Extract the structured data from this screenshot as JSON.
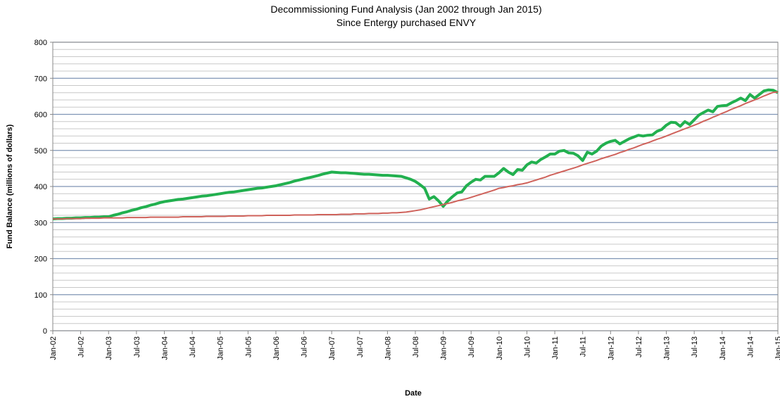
{
  "chart_data": {
    "type": "line",
    "title": "Decommissioning Fund Analysis (Jan 2002 through Jan 2015)",
    "subtitle": "Since Entergy purchased ENVY",
    "xlabel": "Date",
    "ylabel": "Fund Balance (millions of dollars)",
    "categories": [
      "Jan-02",
      null,
      null,
      null,
      null,
      null,
      "Jul-02",
      null,
      null,
      null,
      null,
      null,
      "Jan-03",
      null,
      null,
      null,
      null,
      null,
      "Jul-03",
      null,
      null,
      null,
      null,
      null,
      "Jan-04",
      null,
      null,
      null,
      null,
      null,
      "Jul-04",
      null,
      null,
      null,
      null,
      null,
      "Jan-05",
      null,
      null,
      null,
      null,
      null,
      "Jul-05",
      null,
      null,
      null,
      null,
      null,
      "Jan-06",
      null,
      null,
      null,
      null,
      null,
      "Jul-06",
      null,
      null,
      null,
      null,
      null,
      "Jan-07",
      null,
      null,
      null,
      null,
      null,
      "Jul-07",
      null,
      null,
      null,
      null,
      null,
      "Jan-08",
      null,
      null,
      null,
      null,
      null,
      "Jul-08",
      null,
      null,
      null,
      null,
      null,
      "Jan-09",
      null,
      null,
      null,
      null,
      null,
      "Jul-09",
      null,
      null,
      null,
      null,
      null,
      "Jan-10",
      null,
      null,
      null,
      null,
      null,
      "Jul-10",
      null,
      null,
      null,
      null,
      null,
      "Jan-11",
      null,
      null,
      null,
      null,
      null,
      "Jul-11",
      null,
      null,
      null,
      null,
      null,
      "Jan-12",
      null,
      null,
      null,
      null,
      null,
      "Jul-12",
      null,
      null,
      null,
      null,
      null,
      "Jan-13",
      null,
      null,
      null,
      null,
      null,
      "Jul-13",
      null,
      null,
      null,
      null,
      null,
      "Jan-14",
      null,
      null,
      null,
      null,
      null,
      "Jul-14",
      null,
      null,
      null,
      null,
      null,
      "Jan-15"
    ],
    "series": [
      {
        "color": "#22b04f",
        "width": 4,
        "values": [
          310,
          311,
          311,
          312,
          312,
          313,
          313,
          314,
          314,
          315,
          315,
          316,
          316,
          320,
          323,
          327,
          330,
          334,
          337,
          341,
          344,
          348,
          351,
          355,
          358,
          360,
          362,
          364,
          365,
          367,
          369,
          371,
          373,
          374,
          376,
          378,
          380,
          382,
          384,
          385,
          387,
          389,
          391,
          393,
          395,
          396,
          398,
          400,
          402,
          405,
          408,
          411,
          415,
          418,
          421,
          424,
          427,
          430,
          434,
          437,
          440,
          439,
          438,
          438,
          437,
          436,
          435,
          434,
          434,
          433,
          432,
          431,
          431,
          430,
          429,
          428,
          424,
          420,
          414,
          405,
          395,
          365,
          372,
          360,
          345,
          360,
          372,
          382,
          385,
          402,
          412,
          420,
          418,
          428,
          428,
          428,
          438,
          450,
          440,
          433,
          447,
          445,
          460,
          468,
          465,
          475,
          482,
          490,
          490,
          498,
          500,
          493,
          492,
          485,
          472,
          495,
          490,
          498,
          512,
          520,
          525,
          528,
          518,
          525,
          532,
          537,
          542,
          540,
          542,
          543,
          553,
          558,
          570,
          578,
          577,
          567,
          580,
          572,
          585,
          598,
          605,
          612,
          607,
          622,
          624,
          625,
          632,
          638,
          645,
          638,
          655,
          645,
          655,
          665,
          668,
          667,
          660
        ]
      },
      {
        "color": "#cf625b",
        "width": 2,
        "values": [
          310,
          310,
          310,
          311,
          311,
          311,
          311,
          312,
          312,
          312,
          312,
          313,
          313,
          313,
          313,
          313,
          314,
          314,
          314,
          314,
          314,
          315,
          315,
          315,
          315,
          315,
          315,
          315,
          316,
          316,
          316,
          316,
          316,
          317,
          317,
          317,
          317,
          317,
          318,
          318,
          318,
          318,
          319,
          319,
          319,
          319,
          320,
          320,
          320,
          320,
          320,
          320,
          321,
          321,
          321,
          321,
          321,
          322,
          322,
          322,
          322,
          322,
          323,
          323,
          323,
          324,
          324,
          324,
          325,
          325,
          325,
          326,
          326,
          327,
          327,
          328,
          329,
          331,
          333,
          335,
          338,
          341,
          344,
          347,
          350,
          353,
          356,
          360,
          363,
          366,
          370,
          374,
          378,
          382,
          386,
          390,
          395,
          397,
          400,
          402,
          405,
          407,
          410,
          414,
          418,
          422,
          426,
          431,
          435,
          439,
          443,
          447,
          451,
          455,
          460,
          464,
          468,
          472,
          477,
          481,
          485,
          489,
          494,
          498,
          503,
          507,
          512,
          517,
          521,
          526,
          531,
          535,
          540,
          545,
          550,
          555,
          560,
          565,
          570,
          575,
          581,
          586,
          592,
          597,
          603,
          608,
          614,
          619,
          624,
          630,
          635,
          640,
          645,
          651,
          656,
          661,
          662
        ]
      }
    ],
    "ylim": [
      0,
      800
    ],
    "yticks": [
      0,
      100,
      200,
      300,
      400,
      500,
      600,
      700,
      800
    ],
    "grid": true
  }
}
